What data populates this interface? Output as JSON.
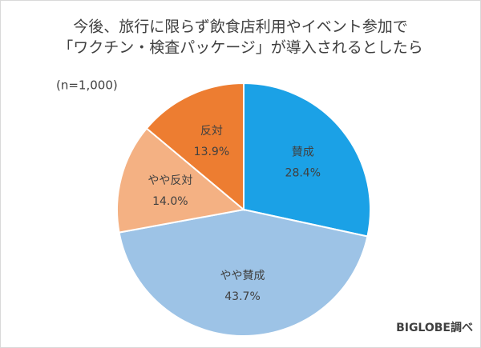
{
  "chart_data": {
    "type": "pie",
    "title": [
      "今後、旅行に限らず飲食店利用やイベント参加で",
      "「ワクチン・検査パッケージ」が導入されるとしたら"
    ],
    "note": "(n=1,000)",
    "source": "BIGLOBE調べ",
    "categories": [
      "賛成",
      "やや賛成",
      "やや反対",
      "反対"
    ],
    "values": [
      28.4,
      43.7,
      14.0,
      13.9
    ],
    "value_labels": [
      "28.4%",
      "43.7%",
      "14.0%",
      "13.9%"
    ],
    "colors": [
      "#1ba1e6",
      "#9dc3e6",
      "#f4b183",
      "#ed7d31"
    ]
  }
}
